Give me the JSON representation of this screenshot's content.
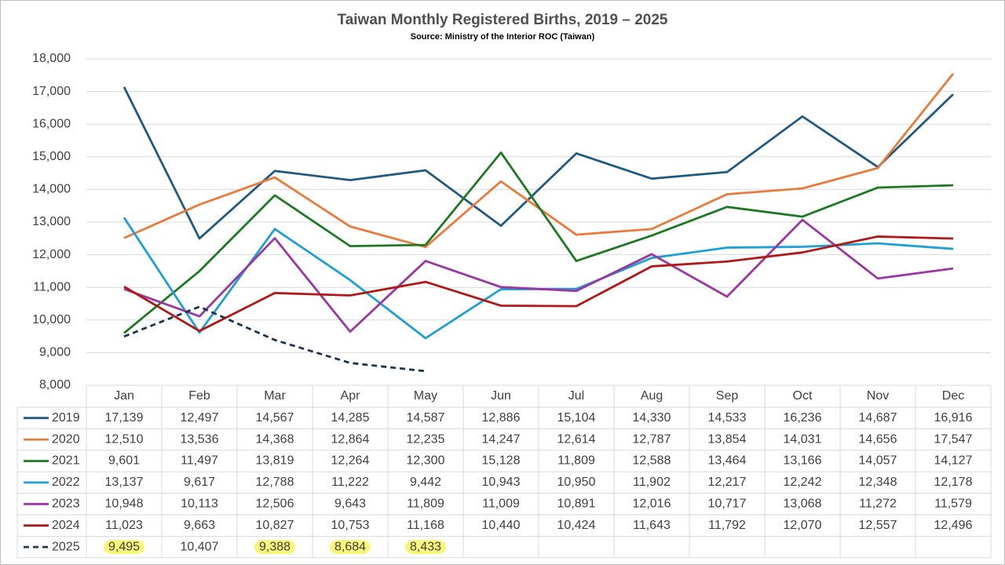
{
  "chart_data": {
    "type": "line",
    "title": "Taiwan Monthly Registered Births, 2019 – 2025",
    "subtitle": "Source: Ministry of the Interior ROC (Taiwan)",
    "categories": [
      "Jan",
      "Feb",
      "Mar",
      "Apr",
      "May",
      "Jun",
      "Jul",
      "Aug",
      "Sep",
      "Oct",
      "Nov",
      "Dec"
    ],
    "ylim": [
      8000,
      18000
    ],
    "yticks": [
      {
        "value": 8000,
        "label": "8,000"
      },
      {
        "value": 9000,
        "label": "9,000"
      },
      {
        "value": 10000,
        "label": "10,000"
      },
      {
        "value": 11000,
        "label": "11,000"
      },
      {
        "value": 12000,
        "label": "12,000"
      },
      {
        "value": 13000,
        "label": "13,000"
      },
      {
        "value": 14000,
        "label": "14,000"
      },
      {
        "value": 15000,
        "label": "15,000"
      },
      {
        "value": 16000,
        "label": "16,000"
      },
      {
        "value": 17000,
        "label": "17,000"
      },
      {
        "value": 18000,
        "label": "18,000"
      }
    ],
    "grid": true,
    "series": [
      {
        "name": "2019",
        "color": "#1f5a80",
        "values": [
          17139,
          12497,
          14567,
          14285,
          14587,
          12886,
          15104,
          14330,
          14533,
          16236,
          14687,
          16916
        ],
        "value_labels": [
          "17,139",
          "12,497",
          "14,567",
          "14,285",
          "14,587",
          "12,886",
          "15,104",
          "14,330",
          "14,533",
          "16,236",
          "14,687",
          "16,916"
        ]
      },
      {
        "name": "2020",
        "color": "#e97b3c",
        "values": [
          12510,
          13536,
          14368,
          12864,
          12235,
          14247,
          12614,
          12787,
          13854,
          14031,
          14656,
          17547
        ],
        "value_labels": [
          "12,510",
          "13,536",
          "14,368",
          "12,864",
          "12,235",
          "14,247",
          "12,614",
          "12,787",
          "13,854",
          "14,031",
          "14,656",
          "17,547"
        ]
      },
      {
        "name": "2021",
        "color": "#1d7a22",
        "values": [
          9601,
          11497,
          13819,
          12264,
          12300,
          15128,
          11809,
          12588,
          13464,
          13166,
          14057,
          14127
        ],
        "value_labels": [
          "9,601",
          "11,497",
          "13,819",
          "12,264",
          "12,300",
          "15,128",
          "11,809",
          "12,588",
          "13,464",
          "13,166",
          "14,057",
          "14,127"
        ]
      },
      {
        "name": "2022",
        "color": "#1da1d3",
        "values": [
          13137,
          9617,
          12788,
          11222,
          9442,
          10943,
          10950,
          11902,
          12217,
          12242,
          12348,
          12178
        ],
        "value_labels": [
          "13,137",
          "9,617",
          "12,788",
          "11,222",
          "9,442",
          "10,943",
          "10,950",
          "11,902",
          "12,217",
          "12,242",
          "12,348",
          "12,178"
        ]
      },
      {
        "name": "2023",
        "color": "#9b36a3",
        "values": [
          10948,
          10113,
          12506,
          9643,
          11809,
          11009,
          10891,
          12016,
          10717,
          13068,
          11272,
          11579
        ],
        "value_labels": [
          "10,948",
          "10,113",
          "12,506",
          "9,643",
          "11,809",
          "11,009",
          "10,891",
          "12,016",
          "10,717",
          "13,068",
          "11,272",
          "11,579"
        ]
      },
      {
        "name": "2024",
        "color": "#b01818",
        "values": [
          11023,
          9663,
          10827,
          10753,
          11168,
          10440,
          10424,
          11643,
          11792,
          12070,
          12557,
          12496
        ],
        "value_labels": [
          "11,023",
          "9,663",
          "10,827",
          "10,753",
          "11,168",
          "10,440",
          "10,424",
          "11,643",
          "11,792",
          "12,070",
          "12,557",
          "12,496"
        ]
      },
      {
        "name": "2025",
        "color": "#1c3550",
        "dashed": true,
        "values": [
          9495,
          10407,
          9388,
          8684,
          8433,
          null,
          null,
          null,
          null,
          null,
          null,
          null
        ],
        "value_labels": [
          "9,495",
          "10,407",
          "9,388",
          "8,684",
          "8,433",
          null,
          null,
          null,
          null,
          null,
          null,
          null
        ],
        "highlight": [
          0,
          2,
          3,
          4
        ],
        "highlight_color": "#f7f57a"
      }
    ]
  }
}
